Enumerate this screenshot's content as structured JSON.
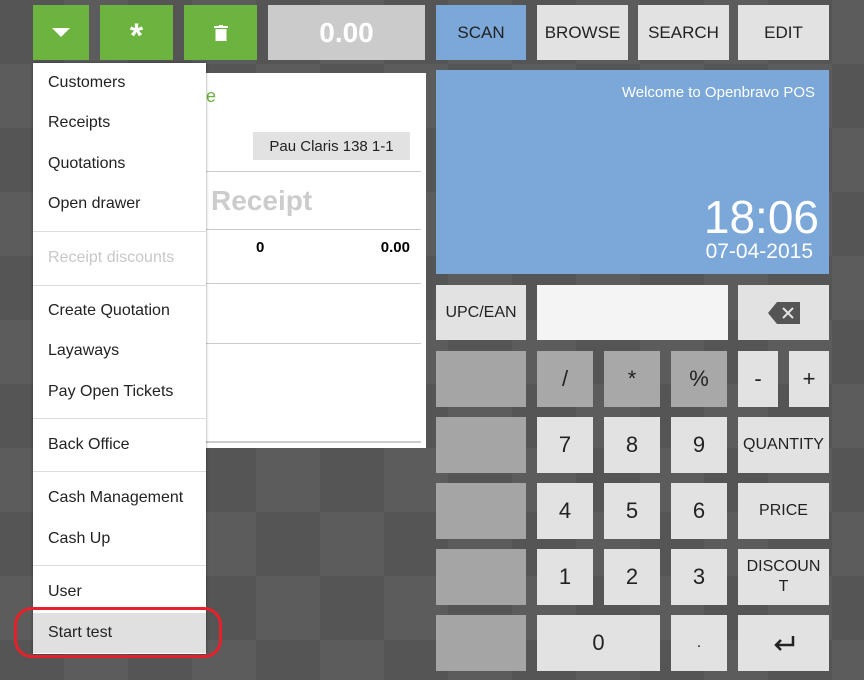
{
  "toolbar": {
    "menu_icon": "caret-down-icon",
    "new_icon": "asterisk-icon",
    "delete_icon": "trash-icon",
    "total": "0.00"
  },
  "tabs": [
    {
      "label": "SCAN",
      "active": true
    },
    {
      "label": "BROWSE"
    },
    {
      "label": "SEARCH"
    },
    {
      "label": "EDIT"
    }
  ],
  "receipt": {
    "partial_green_text": "e",
    "address_button": "Pau Claris 138 1-1",
    "title": "Receipt",
    "qty": "0",
    "amount": "0.00"
  },
  "menu": {
    "items": [
      {
        "label": "Customers"
      },
      {
        "label": "Receipts"
      },
      {
        "label": "Quotations"
      },
      {
        "label": "Open drawer"
      },
      {
        "label": "Receipt discounts",
        "disabled": true
      },
      {
        "label": "Create Quotation"
      },
      {
        "label": "Layaways"
      },
      {
        "label": "Pay Open Tickets"
      },
      {
        "label": "Back Office"
      },
      {
        "label": "Cash Management"
      },
      {
        "label": "Cash Up"
      },
      {
        "label": "User"
      },
      {
        "label": "Start test",
        "highlighted": true
      }
    ]
  },
  "welcome": {
    "message": "Welcome to Openbravo POS",
    "time": "18:06",
    "date": "07-04-2015"
  },
  "keypad": {
    "upc": "UPC/EAN",
    "input_value": "",
    "backspace_icon": "backspace-icon",
    "slash": "/",
    "star": "*",
    "percent": "%",
    "minus": "-",
    "plus": "+",
    "k7": "7",
    "k8": "8",
    "k9": "9",
    "quantity": "QUANTITY",
    "k4": "4",
    "k5": "5",
    "k6": "6",
    "price": "PRICE",
    "k1": "1",
    "k2": "2",
    "k3": "3",
    "discount": "DISCOUNT",
    "k0": "0",
    "dot": ".",
    "enter_icon": "enter-icon"
  },
  "colors": {
    "green": "#6cb33f",
    "blue": "#7ba7d9",
    "annotation": "#e8202a"
  }
}
